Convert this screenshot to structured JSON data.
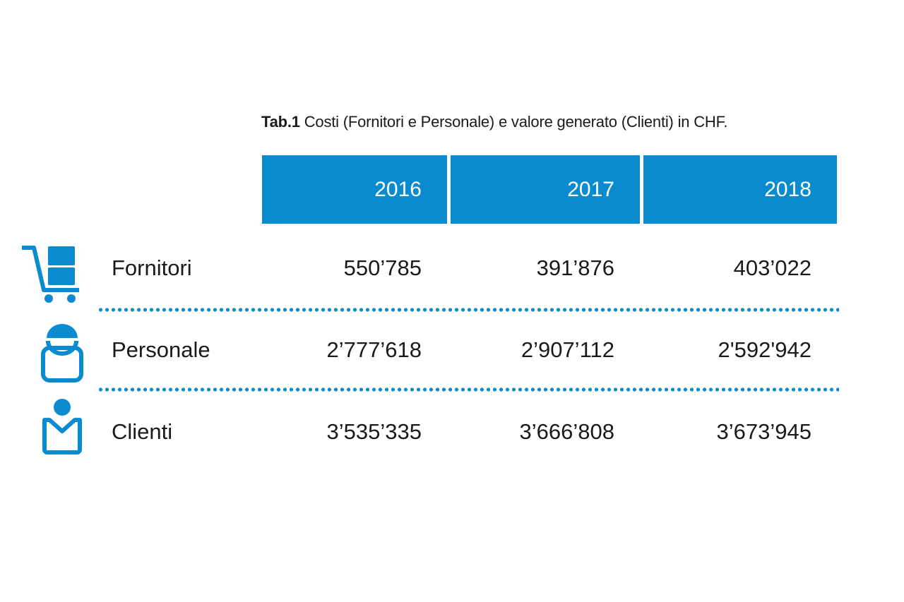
{
  "caption": {
    "id": "Tab.1",
    "text": " Costi (Fornitori e Personale) e valore generato (Clienti) in CHF."
  },
  "table": {
    "columns": [
      "2016",
      "2017",
      "2018"
    ],
    "rows": [
      {
        "label": "Fornitori",
        "icon": "cart-icon",
        "values": [
          "550’785",
          "391’876",
          "403’022"
        ]
      },
      {
        "label": "Personale",
        "icon": "worker-icon",
        "values": [
          "2’777’618",
          "2’907’112",
          "2'592'942"
        ]
      },
      {
        "label": "Clienti",
        "icon": "client-icon",
        "values": [
          "3’535’335",
          "3’666’808",
          "3’673’945"
        ]
      }
    ]
  },
  "colors": {
    "accent": "#0a8bd0",
    "text": "#1a1a1a",
    "header_text": "#ffffff"
  }
}
